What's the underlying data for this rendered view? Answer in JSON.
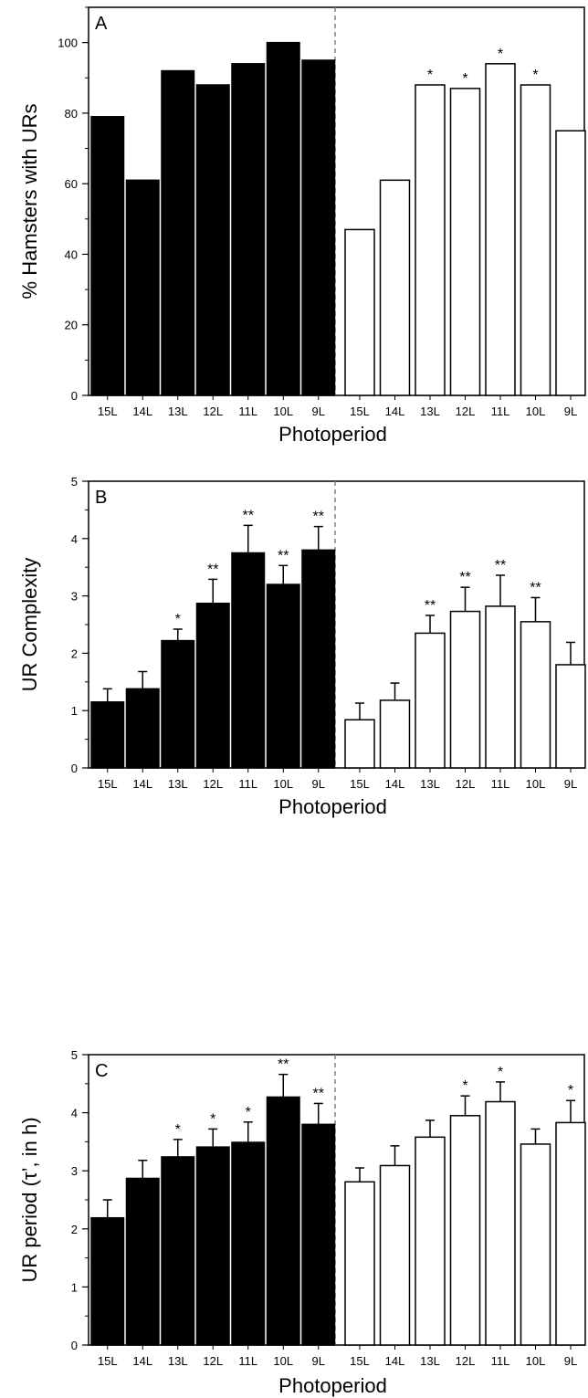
{
  "colors": {
    "filled": "#000000",
    "open": "#ffffff",
    "stroke": "#000000",
    "divider": "#808080"
  },
  "chart_data": [
    {
      "type": "bar",
      "panel_label": "A",
      "ylabel": "% Hamsters with URs",
      "xlabel": "Photoperiod",
      "ylim": [
        0,
        110
      ],
      "yticks": [
        0,
        20,
        40,
        60,
        80,
        100
      ],
      "categories": [
        "15L",
        "14L",
        "13L",
        "12L",
        "11L",
        "10L",
        "9L"
      ],
      "series": [
        {
          "fill": "filled",
          "values": [
            79,
            61,
            92,
            88,
            94,
            100,
            95
          ],
          "errors": null,
          "significance": [
            "",
            "",
            "",
            "",
            "",
            "",
            ""
          ]
        },
        {
          "fill": "open",
          "values": [
            47,
            61,
            88,
            87,
            94,
            88,
            75
          ],
          "errors": null,
          "significance": [
            "",
            "",
            "*",
            "*",
            "*",
            "*",
            ""
          ]
        }
      ]
    },
    {
      "type": "bar",
      "panel_label": "B",
      "ylabel": "UR Complexity",
      "xlabel": "Photoperiod",
      "ylim": [
        0,
        5
      ],
      "yticks": [
        0,
        1,
        2,
        3,
        4,
        5
      ],
      "categories": [
        "15L",
        "14L",
        "13L",
        "12L",
        "11L",
        "10L",
        "9L"
      ],
      "series": [
        {
          "fill": "filled",
          "values": [
            1.15,
            1.38,
            2.22,
            2.87,
            3.75,
            3.2,
            3.8
          ],
          "errors": [
            0.23,
            0.3,
            0.2,
            0.42,
            0.48,
            0.33,
            0.41
          ],
          "significance": [
            "",
            "",
            "*",
            "**",
            "**",
            "**",
            "**"
          ]
        },
        {
          "fill": "open",
          "values": [
            0.84,
            1.18,
            2.35,
            2.73,
            2.82,
            2.55,
            1.8
          ],
          "errors": [
            0.29,
            0.3,
            0.31,
            0.42,
            0.54,
            0.42,
            0.39
          ],
          "significance": [
            "",
            "",
            "**",
            "**",
            "**",
            "**",
            ""
          ]
        }
      ]
    },
    {
      "type": "bar",
      "panel_label": "C",
      "ylabel": "UR period (τ’, in h)",
      "xlabel": "Photoperiod",
      "ylim": [
        0,
        5
      ],
      "yticks": [
        0,
        1,
        2,
        3,
        4,
        5
      ],
      "categories": [
        "15L",
        "14L",
        "13L",
        "12L",
        "11L",
        "10L",
        "9L"
      ],
      "series": [
        {
          "fill": "filled",
          "values": [
            2.19,
            2.87,
            3.24,
            3.41,
            3.49,
            4.27,
            3.8
          ],
          "errors": [
            0.31,
            0.31,
            0.3,
            0.31,
            0.35,
            0.39,
            0.36
          ],
          "significance": [
            "",
            "",
            "*",
            "*",
            "*",
            "**",
            "**"
          ]
        },
        {
          "fill": "open",
          "values": [
            2.81,
            3.09,
            3.58,
            3.95,
            4.19,
            3.46,
            3.83
          ],
          "errors": [
            0.24,
            0.34,
            0.29,
            0.34,
            0.34,
            0.26,
            0.38
          ],
          "significance": [
            "",
            "",
            "",
            "*",
            "*",
            "",
            "*"
          ]
        }
      ]
    }
  ]
}
